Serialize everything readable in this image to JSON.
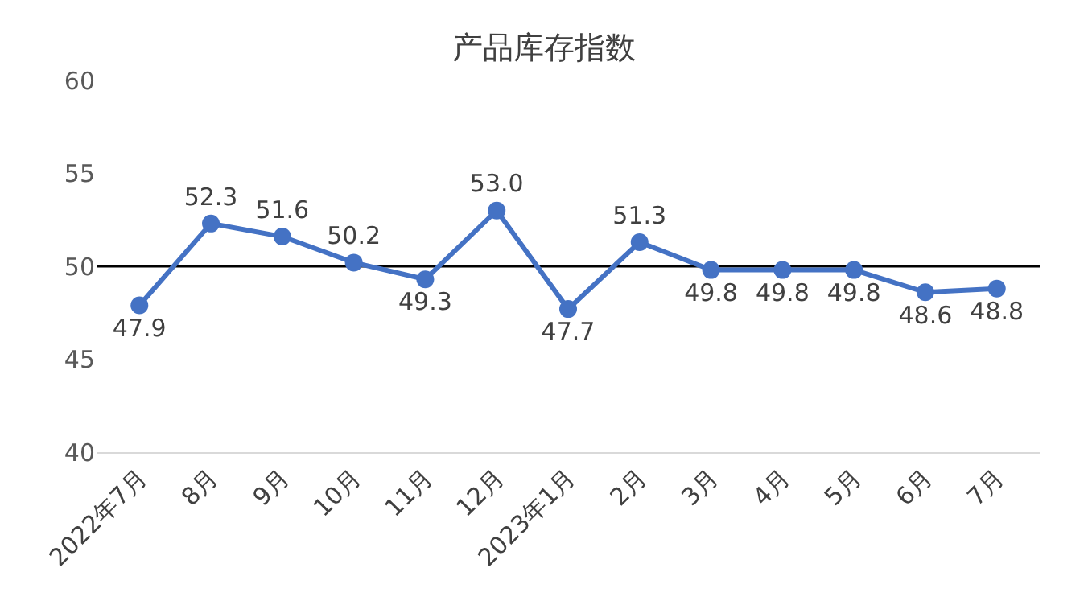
{
  "chart_data": {
    "type": "line",
    "title": "产品库存指数",
    "categories": [
      "2022年7月",
      "8月",
      "9月",
      "10月",
      "11月",
      "12月",
      "2023年1月",
      "2月",
      "3月",
      "4月",
      "5月",
      "6月",
      "7月"
    ],
    "series": [
      {
        "color": "#4472c4",
        "values": [
          47.9,
          52.3,
          51.6,
          50.2,
          49.3,
          53.0,
          47.7,
          51.3,
          49.8,
          49.8,
          49.8,
          48.6,
          48.8
        ]
      }
    ],
    "ylim": [
      40,
      60
    ],
    "yticks": [
      40,
      45,
      50,
      55,
      60
    ],
    "ref_lines": [
      {
        "axis": "y",
        "value": 50,
        "color": "#000000",
        "line_style": "solid"
      }
    ],
    "value_labels": [
      "47.9",
      "52.3",
      "51.6",
      "50.2",
      "49.3",
      "53.0",
      "47.7",
      "51.3",
      "49.8",
      "49.8",
      "49.8",
      "48.6",
      "48.8"
    ],
    "marker": "circle",
    "line_style": "solid",
    "grid": false,
    "legend": false
  }
}
